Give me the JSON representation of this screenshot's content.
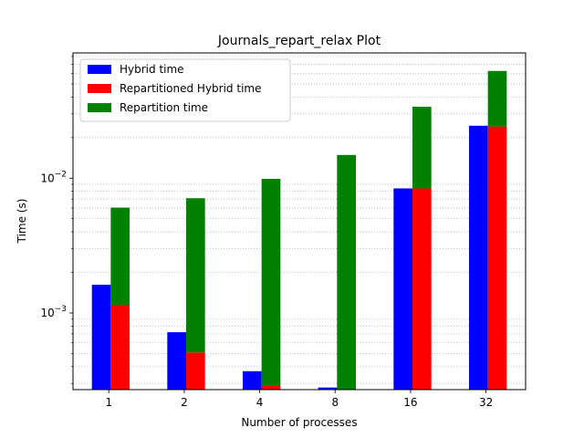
{
  "chart_data": {
    "type": "bar",
    "title": "Journals_repart_relax Plot",
    "xlabel": "Number of processes",
    "ylabel": "Time (s)",
    "yscale": "log",
    "ylim": [
      0.00027,
      0.085
    ],
    "categories": [
      "1",
      "2",
      "4",
      "8",
      "16",
      "32"
    ],
    "y_major_ticks": [
      {
        "value": 0.001,
        "base": "10",
        "exp": "−3"
      },
      {
        "value": 0.01,
        "base": "10",
        "exp": "−2"
      }
    ],
    "grid": "horizontal minor, dotted",
    "legend_position": "upper-left",
    "series": [
      {
        "name": "Hybrid time",
        "color": "#0000ff",
        "values": [
          0.00162,
          0.00072,
          0.00037,
          0.00028,
          0.0084,
          0.0245
        ],
        "stack_on": null,
        "offset": "left"
      },
      {
        "name": "Repartitioned Hybrid time",
        "color": "#ff0000",
        "values": [
          0.00115,
          0.00051,
          0.00029,
          0.00027,
          0.0084,
          0.0242
        ],
        "stack_on": null,
        "offset": "right"
      },
      {
        "name": "Repartition time",
        "color": "#008000",
        "values": [
          0.0049,
          0.0066,
          0.0096,
          0.0146,
          0.0255,
          0.0383
        ],
        "stack_on": "Repartitioned Hybrid time",
        "offset": "right"
      }
    ]
  }
}
